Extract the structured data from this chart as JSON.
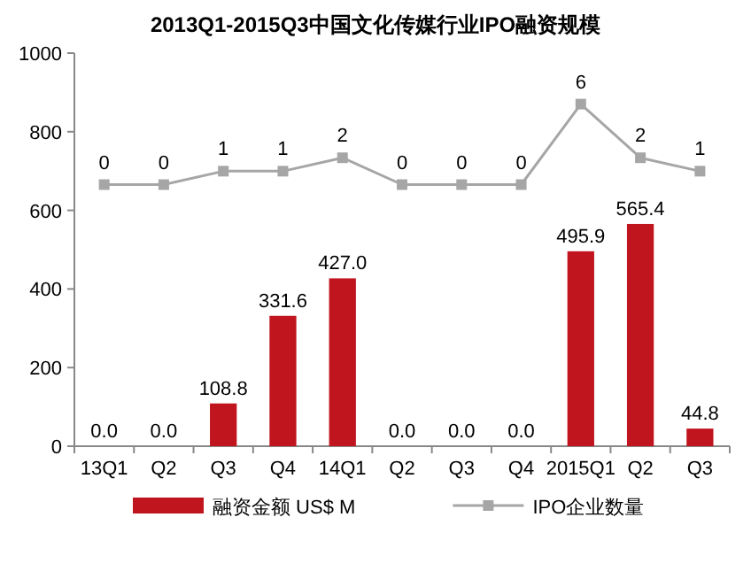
{
  "chart_data": {
    "type": "bar",
    "title": "2013Q1-2015Q3中国文化传媒行业IPO融资规模",
    "categories": [
      "13Q1",
      "Q2",
      "Q3",
      "Q4",
      "14Q1",
      "Q2",
      "Q3",
      "Q4",
      "2015Q1",
      "Q2",
      "Q3"
    ],
    "ylim": [
      0,
      1000
    ],
    "yticks": [
      0,
      200,
      400,
      600,
      800,
      1000
    ],
    "y2lim": [
      -19.5,
      9.8
    ],
    "grid": false,
    "legend": "bottom",
    "series": [
      {
        "name": "融资金额 US$ M",
        "color": "#c0141e",
        "values": [
          0,
          0,
          108.8,
          331.6,
          427,
          0,
          0,
          0,
          495.9,
          565.4,
          44.8
        ],
        "value_labels": [
          "0.0",
          "0.0",
          "108.8",
          "331.6",
          "427.0",
          "0.0",
          "0.0",
          "0.0",
          "495.9",
          "565.4",
          "44.8"
        ]
      },
      {
        "name": "IPO企业数量",
        "type": "line",
        "axis": "y2",
        "color": "#a6a6a6",
        "marker": "square",
        "values": [
          0,
          0,
          1,
          1,
          2,
          0,
          0,
          0,
          6,
          2,
          1
        ],
        "value_labels": [
          "0",
          "0",
          "1",
          "1",
          "2",
          "0",
          "0",
          "0",
          "6",
          "2",
          "1"
        ]
      }
    ]
  }
}
